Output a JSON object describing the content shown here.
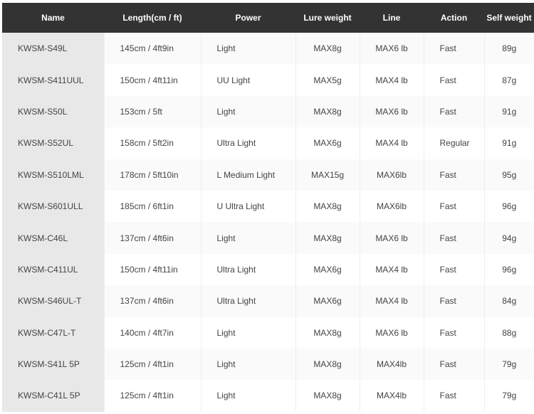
{
  "table": {
    "headers": [
      "Name",
      "Length(cm / ft)",
      "Power",
      "Lure weight",
      "Line",
      "Action",
      "Self weight"
    ],
    "rows": [
      [
        "KWSM-S49L",
        "145cm / 4ft9in",
        "Light",
        "MAX8g",
        "MAX6 lb",
        "Fast",
        "89g"
      ],
      [
        "KWSM-S411UUL",
        "150cm / 4ft11in",
        "UU Light",
        "MAX5g",
        "MAX4 lb",
        "Fast",
        "87g"
      ],
      [
        "KWSM-S50L",
        "153cm / 5ft",
        "Light",
        "MAX8g",
        "MAX6 lb",
        "Fast",
        "91g"
      ],
      [
        "KWSM-S52UL",
        "158cm / 5ft2in",
        "Ultra Light",
        "MAX6g",
        "MAX4 lb",
        "Regular",
        "91g"
      ],
      [
        "KWSM-S510LML",
        "178cm / 5ft10in",
        "L Medium Light",
        "MAX15g",
        "MAX6lb",
        "Fast",
        "95g"
      ],
      [
        "KWSM-S601ULL",
        "185cm / 6ft1in",
        "U Ultra Light",
        "MAX8g",
        "MAX6lb",
        "Fast",
        "96g"
      ],
      [
        "KWSM-C46L",
        "137cm / 4ft6in",
        "Light",
        "MAX8g",
        "MAX6 lb",
        "Fast",
        "94g"
      ],
      [
        "KWSM-C411UL",
        "150cm / 4ft11in",
        "Ultra Light",
        "MAX6g",
        "MAX4 lb",
        "Fast",
        "96g"
      ],
      [
        "KWSM-S46UL-T",
        "137cm / 4ft6in",
        "Ultra Light",
        "MAX6g",
        "MAX4 lb",
        "Fast",
        "84g"
      ],
      [
        "KWSM-C47L-T",
        "140cm / 4ft7in",
        "Light",
        "MAX8g",
        "MAX6 lb",
        "Fast",
        "88g"
      ],
      [
        "KWSM-S41L 5P",
        "125cm / 4ft1in",
        "Light",
        "MAX8g",
        "MAX4lb",
        "Fast",
        "79g"
      ],
      [
        "KWSM-C41L 5P",
        "125cm / 4ft1in",
        "Light",
        "MAX8g",
        "MAX4lb",
        "Fast",
        "79g"
      ]
    ]
  }
}
